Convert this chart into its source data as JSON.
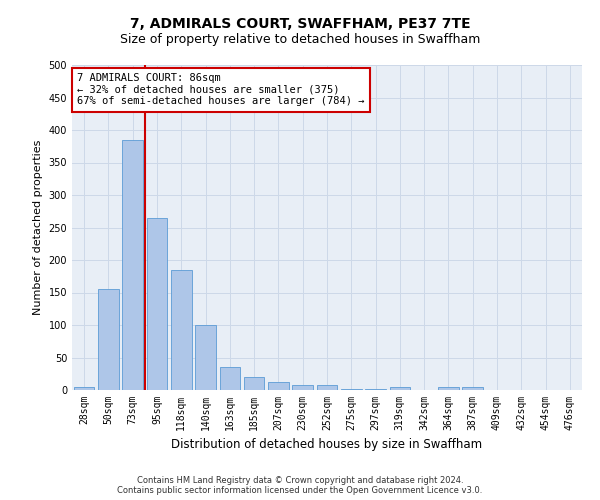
{
  "title": "7, ADMIRALS COURT, SWAFFHAM, PE37 7TE",
  "subtitle": "Size of property relative to detached houses in Swaffham",
  "xlabel": "Distribution of detached houses by size in Swaffham",
  "ylabel": "Number of detached properties",
  "categories": [
    "28sqm",
    "50sqm",
    "73sqm",
    "95sqm",
    "118sqm",
    "140sqm",
    "163sqm",
    "185sqm",
    "207sqm",
    "230sqm",
    "252sqm",
    "275sqm",
    "297sqm",
    "319sqm",
    "342sqm",
    "364sqm",
    "387sqm",
    "409sqm",
    "432sqm",
    "454sqm",
    "476sqm"
  ],
  "values": [
    5,
    155,
    385,
    265,
    185,
    100,
    35,
    20,
    12,
    8,
    8,
    2,
    2,
    5,
    0,
    5,
    5,
    0,
    0,
    0,
    0
  ],
  "bar_color": "#aec6e8",
  "bar_edge_color": "#5b9bd5",
  "property_line_color": "#cc0000",
  "annotation_text": "7 ADMIRALS COURT: 86sqm\n← 32% of detached houses are smaller (375)\n67% of semi-detached houses are larger (784) →",
  "annotation_box_color": "#ffffff",
  "annotation_box_edge_color": "#cc0000",
  "footer_line1": "Contains HM Land Registry data © Crown copyright and database right 2024.",
  "footer_line2": "Contains public sector information licensed under the Open Government Licence v3.0.",
  "ylim": [
    0,
    500
  ],
  "yticks": [
    0,
    50,
    100,
    150,
    200,
    250,
    300,
    350,
    400,
    450,
    500
  ],
  "grid_color": "#cdd8e8",
  "plot_bg_color": "#e8eef6",
  "title_fontsize": 10,
  "subtitle_fontsize": 9,
  "tick_fontsize": 7,
  "ylabel_fontsize": 8,
  "xlabel_fontsize": 8.5,
  "footer_fontsize": 6,
  "annotation_fontsize": 7.5
}
